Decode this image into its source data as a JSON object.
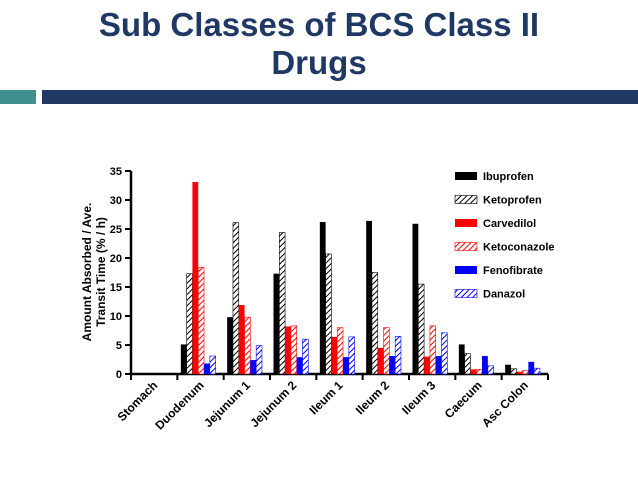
{
  "slide": {
    "title_line1": "Sub Classes of BCS Class II",
    "title_line2": "Drugs"
  },
  "colors": {
    "title": "#1f3864",
    "accent_teal": "#3f8f8c",
    "accent_navy": "#1f3864"
  },
  "chart_data": {
    "type": "bar",
    "title": "",
    "xlabel": "",
    "ylabel": "Amount Absorbed / Ave. Transit Time (% / h)",
    "ylabel_lines": [
      "Amount Absorbed / Ave.",
      "Transit Time (% / h)"
    ],
    "ylim": [
      0,
      35
    ],
    "yticks": [
      "0",
      "5",
      "10",
      "15",
      "20",
      "25",
      "30",
      "35"
    ],
    "grid": false,
    "legend_position": "top-right",
    "categories": [
      "Stomach",
      "Duodenum",
      "Jejunum 1",
      "Jejunum 2",
      "Ileum 1",
      "Ileum 2",
      "Ileum 3",
      "Caecum",
      "Asc Colon"
    ],
    "series": [
      {
        "name": "Ibuprofen",
        "color": "#000000",
        "pattern": "solid",
        "values": [
          0,
          5.1,
          9.8,
          17.3,
          26.2,
          26.4,
          25.9,
          5.1,
          1.6
        ]
      },
      {
        "name": "Ketoprofen",
        "color": "#000000",
        "pattern": "hatch",
        "values": [
          0,
          17.3,
          26.1,
          24.4,
          20.7,
          17.5,
          15.5,
          3.5,
          0.9
        ]
      },
      {
        "name": "Carvedilol",
        "color": "#ff0000",
        "pattern": "solid",
        "values": [
          0,
          33.1,
          11.9,
          8.2,
          6.4,
          4.5,
          3.0,
          0.8,
          0.4
        ]
      },
      {
        "name": "Ketoconazole",
        "color": "#ff0000",
        "pattern": "hatch",
        "values": [
          0,
          18.4,
          9.8,
          8.3,
          8.0,
          8.0,
          8.3,
          0.8,
          0.6
        ]
      },
      {
        "name": "Fenofibrate",
        "color": "#0000ff",
        "pattern": "solid",
        "values": [
          0,
          1.8,
          2.4,
          2.9,
          2.9,
          3.1,
          3.1,
          3.1,
          2.1
        ]
      },
      {
        "name": "Danazol",
        "color": "#0000ff",
        "pattern": "hatch",
        "values": [
          0,
          3.1,
          4.9,
          6.0,
          6.4,
          6.5,
          7.1,
          1.4,
          1.0
        ]
      }
    ]
  }
}
